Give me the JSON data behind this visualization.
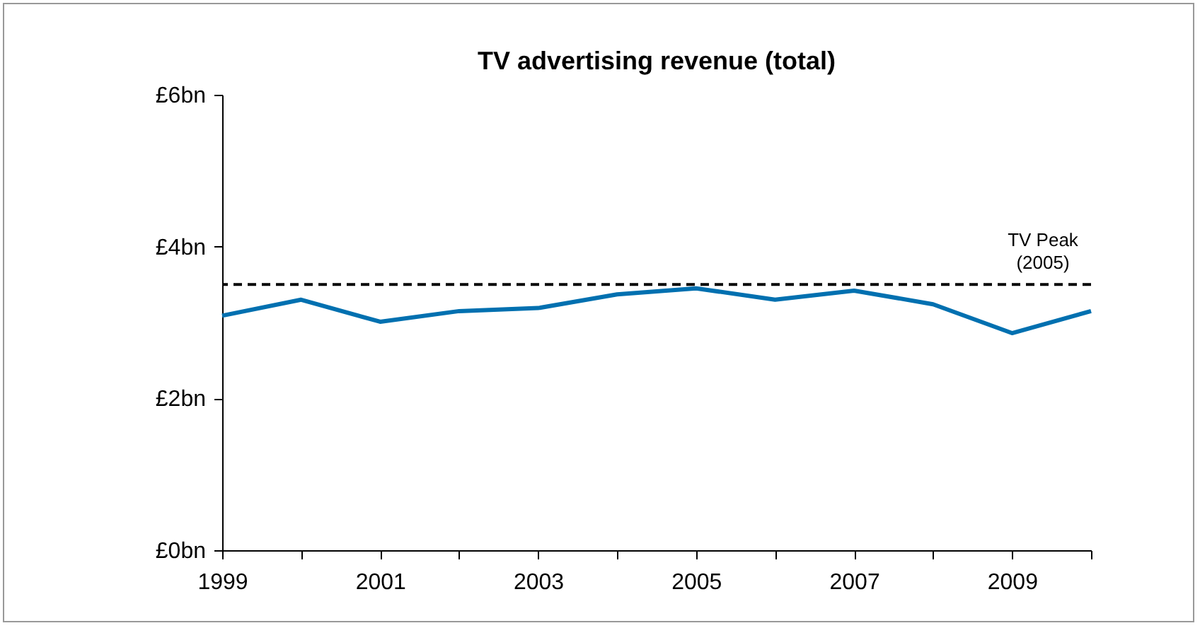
{
  "chart_data": {
    "type": "line",
    "title": "TV advertising revenue (total)",
    "categories": [
      "1999",
      null,
      "2001",
      null,
      "2003",
      null,
      "2005",
      null,
      "2007",
      null,
      "2009",
      null
    ],
    "series": [
      {
        "color": "#0070b0",
        "values": [
          3.09,
          3.3,
          3.01,
          3.15,
          3.19,
          3.37,
          3.45,
          3.3,
          3.42,
          3.24,
          2.86,
          3.15
        ]
      }
    ],
    "ylim": [
      0,
      6
    ],
    "yticks": [
      {
        "value": 0,
        "label": "£0bn"
      },
      {
        "value": 2,
        "label": "£2bn"
      },
      {
        "value": 4,
        "label": "£4bn"
      },
      {
        "value": 6,
        "label": "£6bn"
      }
    ],
    "ref_lines": [
      {
        "axis": "y",
        "value": 3.5,
        "label": "TV Peak\n(2005)",
        "color": "#000000",
        "line_style": "dashed"
      }
    ],
    "grid": false,
    "marker": "none"
  }
}
